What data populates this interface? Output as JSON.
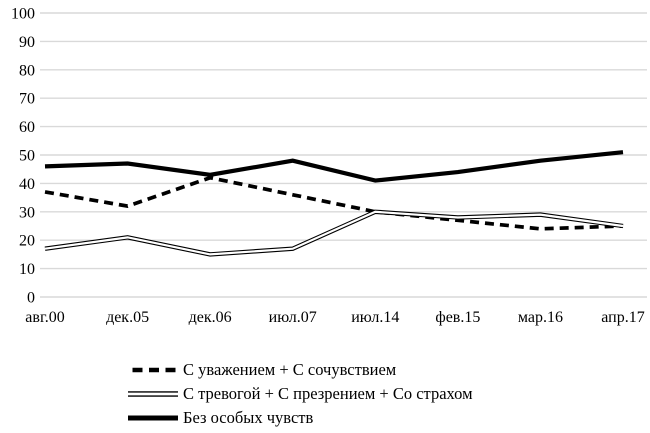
{
  "chart_data": {
    "type": "line",
    "title": "",
    "xlabel": "",
    "ylabel": "",
    "categories": [
      "авг.00",
      "дек.05",
      "дек.06",
      "июл.07",
      "июл.14",
      "фев.15",
      "мар.16",
      "апр.17"
    ],
    "series": [
      {
        "name": "С уважением + С сочувствием",
        "style": "dashed",
        "values": [
          37,
          32,
          42,
          36,
          30,
          27,
          24,
          25
        ]
      },
      {
        "name": "С тревогой + С презрением + Со страхом",
        "style": "double",
        "values": [
          17,
          21,
          15,
          17,
          30,
          28,
          29,
          25
        ]
      },
      {
        "name": "Без особых чувств",
        "style": "solid",
        "values": [
          46,
          47,
          43,
          48,
          41,
          44,
          48,
          51
        ]
      }
    ],
    "ylim": [
      0,
      100
    ],
    "yticks": [
      0,
      10,
      20,
      30,
      40,
      50,
      60,
      70,
      80,
      90,
      100
    ],
    "grid": "horizontal",
    "legend_position": "bottom-left"
  },
  "colors": {
    "series_line": "#000000",
    "gridline": "#d9d9d9",
    "background": "#ffffff",
    "text": "#000000"
  }
}
